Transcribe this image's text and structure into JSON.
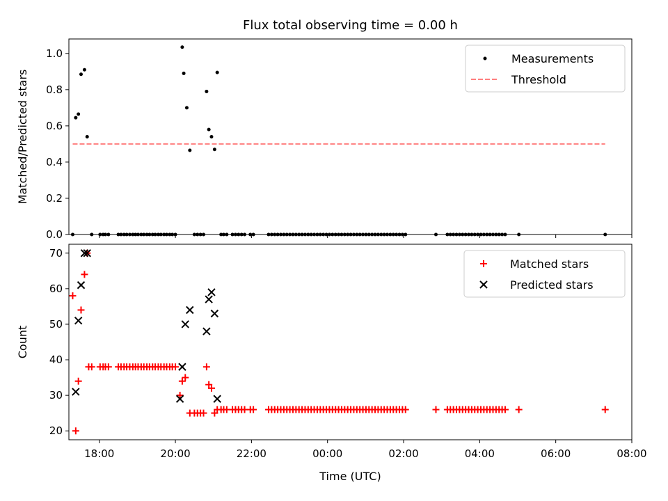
{
  "chart_data": [
    {
      "type": "scatter",
      "title": "Flux total observing time = 0.00 h",
      "ylabel": "Matched/Predicted stars",
      "xlim": [
        17.2,
        32.0
      ],
      "ylim": [
        0,
        1.08
      ],
      "yticks": [
        "0.0",
        "0.2",
        "0.4",
        "0.6",
        "0.8",
        "1.0"
      ],
      "legend_position": "upper right",
      "series": [
        {
          "name": "Measurements",
          "style": "dot",
          "color": "#000000",
          "points": [
            [
              17.3,
              0
            ],
            [
              17.38,
              0.645
            ],
            [
              17.45,
              0.665
            ],
            [
              17.52,
              0.885
            ],
            [
              17.61,
              0.91
            ],
            [
              17.68,
              0.54
            ],
            [
              17.8,
              0
            ],
            [
              18.02,
              0
            ],
            [
              18.1,
              0
            ],
            [
              18.16,
              0
            ],
            [
              18.24,
              0
            ],
            [
              18.5,
              0
            ],
            [
              18.57,
              0
            ],
            [
              18.65,
              0
            ],
            [
              18.72,
              0
            ],
            [
              18.8,
              0
            ],
            [
              18.88,
              0
            ],
            [
              18.95,
              0
            ],
            [
              19.02,
              0
            ],
            [
              19.1,
              0
            ],
            [
              19.17,
              0
            ],
            [
              19.25,
              0
            ],
            [
              19.32,
              0
            ],
            [
              19.4,
              0
            ],
            [
              19.47,
              0
            ],
            [
              19.55,
              0
            ],
            [
              19.62,
              0
            ],
            [
              19.7,
              0
            ],
            [
              19.77,
              0
            ],
            [
              19.85,
              0
            ],
            [
              19.92,
              0
            ],
            [
              20.0,
              0
            ],
            [
              20.18,
              1.035
            ],
            [
              20.22,
              0.89
            ],
            [
              20.3,
              0.7
            ],
            [
              20.38,
              0.465
            ],
            [
              20.5,
              0
            ],
            [
              20.58,
              0
            ],
            [
              20.66,
              0
            ],
            [
              20.74,
              0
            ],
            [
              20.82,
              0.79
            ],
            [
              20.88,
              0.58
            ],
            [
              20.95,
              0.54
            ],
            [
              21.03,
              0.47
            ],
            [
              21.1,
              0.895
            ],
            [
              21.2,
              0
            ],
            [
              21.27,
              0
            ],
            [
              21.35,
              0
            ],
            [
              21.5,
              0
            ],
            [
              21.58,
              0
            ],
            [
              21.66,
              0
            ],
            [
              21.74,
              0
            ],
            [
              21.82,
              0
            ],
            [
              21.97,
              0
            ],
            [
              22.05,
              0
            ],
            [
              22.45,
              0
            ],
            [
              22.53,
              0
            ],
            [
              22.61,
              0
            ],
            [
              22.69,
              0
            ],
            [
              22.77,
              0
            ],
            [
              22.85,
              0
            ],
            [
              22.93,
              0
            ],
            [
              23.01,
              0
            ],
            [
              23.09,
              0
            ],
            [
              23.17,
              0
            ],
            [
              23.25,
              0
            ],
            [
              23.33,
              0
            ],
            [
              23.41,
              0
            ],
            [
              23.49,
              0
            ],
            [
              23.57,
              0
            ],
            [
              23.65,
              0
            ],
            [
              23.73,
              0
            ],
            [
              23.81,
              0
            ],
            [
              23.89,
              0
            ],
            [
              23.97,
              0
            ],
            [
              24.05,
              0
            ],
            [
              24.13,
              0
            ],
            [
              24.21,
              0
            ],
            [
              24.29,
              0
            ],
            [
              24.37,
              0
            ],
            [
              24.45,
              0
            ],
            [
              24.53,
              0
            ],
            [
              24.61,
              0
            ],
            [
              24.69,
              0
            ],
            [
              24.77,
              0
            ],
            [
              24.85,
              0
            ],
            [
              24.93,
              0
            ],
            [
              25.01,
              0
            ],
            [
              25.09,
              0
            ],
            [
              25.17,
              0
            ],
            [
              25.25,
              0
            ],
            [
              25.33,
              0
            ],
            [
              25.41,
              0
            ],
            [
              25.49,
              0
            ],
            [
              25.57,
              0
            ],
            [
              25.65,
              0
            ],
            [
              25.73,
              0
            ],
            [
              25.81,
              0
            ],
            [
              25.89,
              0
            ],
            [
              25.97,
              0
            ],
            [
              26.05,
              0
            ],
            [
              26.85,
              0
            ],
            [
              27.15,
              0
            ],
            [
              27.23,
              0
            ],
            [
              27.31,
              0
            ],
            [
              27.39,
              0
            ],
            [
              27.47,
              0
            ],
            [
              27.55,
              0
            ],
            [
              27.63,
              0
            ],
            [
              27.71,
              0
            ],
            [
              27.79,
              0
            ],
            [
              27.87,
              0
            ],
            [
              27.95,
              0
            ],
            [
              28.03,
              0
            ],
            [
              28.11,
              0
            ],
            [
              28.19,
              0
            ],
            [
              28.27,
              0
            ],
            [
              28.35,
              0
            ],
            [
              28.43,
              0
            ],
            [
              28.51,
              0
            ],
            [
              28.59,
              0
            ],
            [
              28.67,
              0
            ],
            [
              29.03,
              0
            ],
            [
              31.3,
              0
            ]
          ]
        },
        {
          "name": "Threshold",
          "style": "dashed-line",
          "color": "#ff7f7f",
          "points": [
            [
              17.3,
              0.5
            ],
            [
              31.3,
              0.5
            ]
          ]
        }
      ]
    },
    {
      "type": "scatter",
      "xlabel": "Time (UTC)",
      "ylabel": "Count",
      "xlim": [
        17.2,
        32.0
      ],
      "ylim": [
        17.5,
        72.5
      ],
      "xticks": [
        "18:00",
        "20:00",
        "22:00",
        "00:00",
        "02:00",
        "04:00",
        "06:00",
        "08:00"
      ],
      "yticks": [
        "20",
        "30",
        "40",
        "50",
        "60",
        "70"
      ],
      "legend_position": "upper right",
      "series": [
        {
          "name": "Matched stars",
          "style": "plus",
          "color": "#ff0000",
          "points": [
            [
              17.3,
              58
            ],
            [
              17.38,
              20
            ],
            [
              17.45,
              34
            ],
            [
              17.52,
              54
            ],
            [
              17.61,
              64
            ],
            [
              17.68,
              70
            ],
            [
              17.72,
              38
            ],
            [
              17.8,
              38
            ],
            [
              18.02,
              38
            ],
            [
              18.1,
              38
            ],
            [
              18.16,
              38
            ],
            [
              18.24,
              38
            ],
            [
              18.5,
              38
            ],
            [
              18.57,
              38
            ],
            [
              18.65,
              38
            ],
            [
              18.72,
              38
            ],
            [
              18.8,
              38
            ],
            [
              18.88,
              38
            ],
            [
              18.95,
              38
            ],
            [
              19.02,
              38
            ],
            [
              19.1,
              38
            ],
            [
              19.17,
              38
            ],
            [
              19.25,
              38
            ],
            [
              19.32,
              38
            ],
            [
              19.4,
              38
            ],
            [
              19.47,
              38
            ],
            [
              19.55,
              38
            ],
            [
              19.62,
              38
            ],
            [
              19.7,
              38
            ],
            [
              19.77,
              38
            ],
            [
              19.85,
              38
            ],
            [
              19.92,
              38
            ],
            [
              20.0,
              38
            ],
            [
              20.12,
              30
            ],
            [
              20.18,
              34
            ],
            [
              20.26,
              35
            ],
            [
              20.38,
              25
            ],
            [
              20.5,
              25
            ],
            [
              20.58,
              25
            ],
            [
              20.66,
              25
            ],
            [
              20.74,
              25
            ],
            [
              20.82,
              38
            ],
            [
              20.88,
              33
            ],
            [
              20.95,
              32
            ],
            [
              21.03,
              25
            ],
            [
              21.1,
              26
            ],
            [
              21.2,
              26
            ],
            [
              21.27,
              26
            ],
            [
              21.35,
              26
            ],
            [
              21.5,
              26
            ],
            [
              21.58,
              26
            ],
            [
              21.66,
              26
            ],
            [
              21.74,
              26
            ],
            [
              21.82,
              26
            ],
            [
              21.97,
              26
            ],
            [
              22.05,
              26
            ],
            [
              22.45,
              26
            ],
            [
              22.53,
              26
            ],
            [
              22.61,
              26
            ],
            [
              22.69,
              26
            ],
            [
              22.77,
              26
            ],
            [
              22.85,
              26
            ],
            [
              22.93,
              26
            ],
            [
              23.01,
              26
            ],
            [
              23.09,
              26
            ],
            [
              23.17,
              26
            ],
            [
              23.25,
              26
            ],
            [
              23.33,
              26
            ],
            [
              23.41,
              26
            ],
            [
              23.49,
              26
            ],
            [
              23.57,
              26
            ],
            [
              23.65,
              26
            ],
            [
              23.73,
              26
            ],
            [
              23.81,
              26
            ],
            [
              23.89,
              26
            ],
            [
              23.97,
              26
            ],
            [
              24.05,
              26
            ],
            [
              24.13,
              26
            ],
            [
              24.21,
              26
            ],
            [
              24.29,
              26
            ],
            [
              24.37,
              26
            ],
            [
              24.45,
              26
            ],
            [
              24.53,
              26
            ],
            [
              24.61,
              26
            ],
            [
              24.69,
              26
            ],
            [
              24.77,
              26
            ],
            [
              24.85,
              26
            ],
            [
              24.93,
              26
            ],
            [
              25.01,
              26
            ],
            [
              25.09,
              26
            ],
            [
              25.17,
              26
            ],
            [
              25.25,
              26
            ],
            [
              25.33,
              26
            ],
            [
              25.41,
              26
            ],
            [
              25.49,
              26
            ],
            [
              25.57,
              26
            ],
            [
              25.65,
              26
            ],
            [
              25.73,
              26
            ],
            [
              25.81,
              26
            ],
            [
              25.89,
              26
            ],
            [
              25.97,
              26
            ],
            [
              26.05,
              26
            ],
            [
              26.85,
              26
            ],
            [
              27.15,
              26
            ],
            [
              27.23,
              26
            ],
            [
              27.31,
              26
            ],
            [
              27.39,
              26
            ],
            [
              27.47,
              26
            ],
            [
              27.55,
              26
            ],
            [
              27.63,
              26
            ],
            [
              27.71,
              26
            ],
            [
              27.79,
              26
            ],
            [
              27.87,
              26
            ],
            [
              27.95,
              26
            ],
            [
              28.03,
              26
            ],
            [
              28.11,
              26
            ],
            [
              28.19,
              26
            ],
            [
              28.27,
              26
            ],
            [
              28.35,
              26
            ],
            [
              28.43,
              26
            ],
            [
              28.51,
              26
            ],
            [
              28.59,
              26
            ],
            [
              28.67,
              26
            ],
            [
              29.03,
              26
            ],
            [
              31.3,
              26
            ]
          ]
        },
        {
          "name": "Predicted stars",
          "style": "x",
          "color": "#000000",
          "points": [
            [
              17.38,
              31
            ],
            [
              17.45,
              51
            ],
            [
              17.52,
              61
            ],
            [
              17.61,
              70
            ],
            [
              17.68,
              70
            ],
            [
              20.12,
              29
            ],
            [
              20.18,
              38
            ],
            [
              20.26,
              50
            ],
            [
              20.38,
              54
            ],
            [
              20.82,
              48
            ],
            [
              20.88,
              57
            ],
            [
              20.95,
              59
            ],
            [
              21.03,
              53
            ],
            [
              21.1,
              29
            ]
          ]
        }
      ]
    }
  ]
}
